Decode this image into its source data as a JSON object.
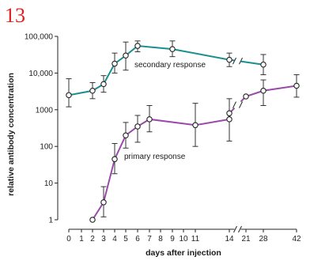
{
  "figure_number": "13",
  "chart_data": {
    "type": "line",
    "xlabel": "days after injection",
    "ylabel": "relative antibody concentration",
    "x_ticks": [
      "0",
      "1",
      "2",
      "3",
      "4",
      "5",
      "6",
      "7",
      "8",
      "9",
      "10",
      "11",
      "14",
      "21",
      "28",
      "42"
    ],
    "y_ticks": [
      "100,000",
      "10,000",
      "1000",
      "100",
      "10",
      "1"
    ],
    "y_scale": "log",
    "ylim": [
      1,
      100000
    ],
    "x_axis_break": "between 14 and 21",
    "grid": false,
    "series": [
      {
        "name": "secondary response",
        "color": "#1a8f8f",
        "points": [
          {
            "day": "0",
            "value": 2500,
            "low": 1200,
            "high": 7000
          },
          {
            "day": "2",
            "value": 3300,
            "low": 2000,
            "high": 5500
          },
          {
            "day": "3",
            "value": 5000,
            "low": 3000,
            "high": 8500
          },
          {
            "day": "4",
            "value": 18000,
            "low": 10000,
            "high": 35000
          },
          {
            "day": "5",
            "value": 30000,
            "low": 12000,
            "high": 70000
          },
          {
            "day": "6",
            "value": 55000,
            "low": 38000,
            "high": 75000
          },
          {
            "day": "9",
            "value": 45000,
            "low": 28000,
            "high": 75000
          },
          {
            "day": "14",
            "value": 23000,
            "low": 15000,
            "high": 35000
          },
          {
            "day": "28",
            "value": 17000,
            "low": 9000,
            "high": 32000
          }
        ]
      },
      {
        "name": "primary response",
        "color": "#9a4aa8",
        "points": [
          {
            "day": "2",
            "value": 1
          },
          {
            "day": "3",
            "value": 3,
            "low": 1.2,
            "high": 8
          },
          {
            "day": "4",
            "value": 45,
            "low": 18,
            "high": 120
          },
          {
            "day": "5",
            "value": 200,
            "low": 90,
            "high": 450
          },
          {
            "day": "6",
            "value": 350,
            "low": 130,
            "high": 700
          },
          {
            "day": "7",
            "value": 550,
            "low": 250,
            "high": 1300
          },
          {
            "day": "11",
            "value": 380,
            "low": 100,
            "high": 1500
          },
          {
            "day": "14",
            "value": 550,
            "low": 140,
            "high": 2000
          },
          {
            "day": "14",
            "value": 800
          },
          {
            "day": "21",
            "value": 2300
          },
          {
            "day": "28",
            "value": 3300,
            "low": 1300,
            "high": 6500
          },
          {
            "day": "42",
            "value": 4500,
            "low": 2200,
            "high": 9000
          }
        ]
      }
    ]
  }
}
